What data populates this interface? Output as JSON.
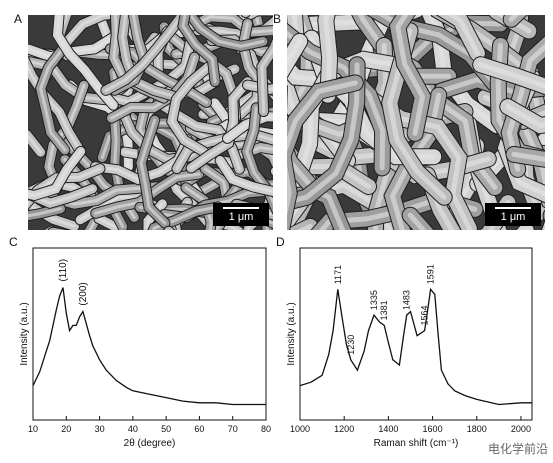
{
  "images": [
    {
      "panel": "A",
      "scale_bar": "1 μm"
    },
    {
      "panel": "B",
      "scale_bar": "1 μm"
    }
  ],
  "chart_data": [
    {
      "type": "line",
      "panel": "C",
      "x_label": "2θ (degree)",
      "y_label": "Intensity (a.u.)",
      "xlim": [
        10,
        80
      ],
      "xticks": [
        10,
        20,
        30,
        40,
        50,
        60,
        70,
        80
      ],
      "ylim": [
        0,
        100
      ],
      "color": "#111111",
      "x": [
        10,
        12,
        14,
        15,
        16,
        17,
        18,
        19,
        20,
        21,
        22,
        23,
        24,
        25,
        26,
        27,
        28,
        30,
        32,
        35,
        38,
        40,
        45,
        50,
        55,
        60,
        65,
        70,
        75,
        80
      ],
      "values": [
        20,
        28,
        40,
        46,
        55,
        64,
        72,
        77,
        62,
        52,
        55,
        55,
        60,
        63,
        56,
        49,
        43,
        35,
        29,
        23,
        19,
        17,
        15,
        13,
        11,
        10,
        10,
        9,
        9,
        9
      ],
      "annotations": [
        {
          "text": "(110)",
          "x": 19
        },
        {
          "text": "(200)",
          "x": 25
        }
      ]
    },
    {
      "type": "line",
      "panel": "D",
      "x_label": "Raman shift (cm⁻¹)",
      "y_label": "Intensity (a.u.)",
      "xlim": [
        1000,
        2050
      ],
      "xticks": [
        1000,
        1200,
        1400,
        1600,
        1800,
        2000
      ],
      "ylim": [
        0,
        100
      ],
      "color": "#111111",
      "x": [
        1000,
        1050,
        1100,
        1130,
        1150,
        1171,
        1190,
        1210,
        1230,
        1260,
        1290,
        1310,
        1335,
        1360,
        1381,
        1400,
        1420,
        1450,
        1470,
        1483,
        1500,
        1530,
        1564,
        1580,
        1591,
        1610,
        1625,
        1640,
        1670,
        1700,
        1750,
        1800,
        1900,
        2000,
        2050
      ],
      "values": [
        20,
        22,
        26,
        38,
        52,
        76,
        60,
        44,
        35,
        29,
        40,
        52,
        61,
        57,
        55,
        45,
        35,
        32,
        50,
        61,
        63,
        49,
        52,
        66,
        76,
        73,
        50,
        29,
        21,
        17,
        14,
        12,
        9,
        10,
        10
      ],
      "peak_labels": [
        1171,
        1230,
        1335,
        1381,
        1483,
        1564,
        1591
      ]
    }
  ],
  "watermark": "电化学前沿"
}
